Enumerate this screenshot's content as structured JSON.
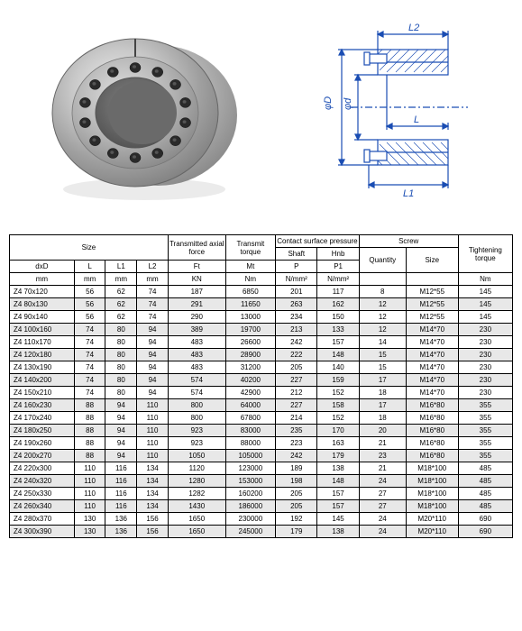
{
  "diagram_labels": {
    "L2": "L2",
    "L1": "L1",
    "L": "L",
    "phiD": "φD",
    "phid": "φd"
  },
  "headers": {
    "size": "Size",
    "transmitted_axial_force": "Transmitted axial force",
    "transmit_torque": "Transmit torque",
    "contact_surface_pressure": "Contact surface pressure",
    "screw": "Screw",
    "tightening_torque": "Tightening torque",
    "shaft": "Shaft",
    "hnb": "Hnb",
    "quantity": "Quantity",
    "screw_size": "Size",
    "dxd": "dxD",
    "L": "L",
    "L1": "L1",
    "L2": "L2",
    "Ft": "Ft",
    "Mt": "Mt",
    "P": "P",
    "P1": "P1",
    "unit_mm": "mm",
    "unit_KN": "KN",
    "unit_Nm": "Nm",
    "unit_Nmm2": "N/mm²"
  },
  "rows": [
    {
      "size": "Z4  70x120",
      "L": "56",
      "L1": "62",
      "L2": "74",
      "Ft": "187",
      "Mt": "6850",
      "P": "201",
      "P1": "117",
      "qty": "8",
      "screw": "M12*55",
      "tt": "145",
      "alt": false
    },
    {
      "size": "Z4  80x130",
      "L": "56",
      "L1": "62",
      "L2": "74",
      "Ft": "291",
      "Mt": "11650",
      "P": "263",
      "P1": "162",
      "qty": "12",
      "screw": "M12*55",
      "tt": "145",
      "alt": true
    },
    {
      "size": "Z4  90x140",
      "L": "56",
      "L1": "62",
      "L2": "74",
      "Ft": "290",
      "Mt": "13000",
      "P": "234",
      "P1": "150",
      "qty": "12",
      "screw": "M12*55",
      "tt": "145",
      "alt": false
    },
    {
      "size": "Z4  100x160",
      "L": "74",
      "L1": "80",
      "L2": "94",
      "Ft": "389",
      "Mt": "19700",
      "P": "213",
      "P1": "133",
      "qty": "12",
      "screw": "M14*70",
      "tt": "230",
      "alt": true
    },
    {
      "size": "Z4  110x170",
      "L": "74",
      "L1": "80",
      "L2": "94",
      "Ft": "483",
      "Mt": "26600",
      "P": "242",
      "P1": "157",
      "qty": "14",
      "screw": "M14*70",
      "tt": "230",
      "alt": false
    },
    {
      "size": "Z4  120x180",
      "L": "74",
      "L1": "80",
      "L2": "94",
      "Ft": "483",
      "Mt": "28900",
      "P": "222",
      "P1": "148",
      "qty": "15",
      "screw": "M14*70",
      "tt": "230",
      "alt": true
    },
    {
      "size": "Z4  130x190",
      "L": "74",
      "L1": "80",
      "L2": "94",
      "Ft": "483",
      "Mt": "31200",
      "P": "205",
      "P1": "140",
      "qty": "15",
      "screw": "M14*70",
      "tt": "230",
      "alt": false
    },
    {
      "size": "Z4  140x200",
      "L": "74",
      "L1": "80",
      "L2": "94",
      "Ft": "574",
      "Mt": "40200",
      "P": "227",
      "P1": "159",
      "qty": "17",
      "screw": "M14*70",
      "tt": "230",
      "alt": true
    },
    {
      "size": "Z4  150x210",
      "L": "74",
      "L1": "80",
      "L2": "94",
      "Ft": "574",
      "Mt": "42900",
      "P": "212",
      "P1": "152",
      "qty": "18",
      "screw": "M14*70",
      "tt": "230",
      "alt": false
    },
    {
      "size": "Z4  160x230",
      "L": "88",
      "L1": "94",
      "L2": "110",
      "Ft": "800",
      "Mt": "64000",
      "P": "227",
      "P1": "158",
      "qty": "17",
      "screw": "M16*80",
      "tt": "355",
      "alt": true
    },
    {
      "size": "Z4  170x240",
      "L": "88",
      "L1": "94",
      "L2": "110",
      "Ft": "800",
      "Mt": "67800",
      "P": "214",
      "P1": "152",
      "qty": "18",
      "screw": "M16*80",
      "tt": "355",
      "alt": false
    },
    {
      "size": "Z4  180x250",
      "L": "88",
      "L1": "94",
      "L2": "110",
      "Ft": "923",
      "Mt": "83000",
      "P": "235",
      "P1": "170",
      "qty": "20",
      "screw": "M16*80",
      "tt": "355",
      "alt": true
    },
    {
      "size": "Z4  190x260",
      "L": "88",
      "L1": "94",
      "L2": "110",
      "Ft": "923",
      "Mt": "88000",
      "P": "223",
      "P1": "163",
      "qty": "21",
      "screw": "M16*80",
      "tt": "355",
      "alt": false
    },
    {
      "size": "Z4  200x270",
      "L": "88",
      "L1": "94",
      "L2": "110",
      "Ft": "1050",
      "Mt": "105000",
      "P": "242",
      "P1": "179",
      "qty": "23",
      "screw": "M16*80",
      "tt": "355",
      "alt": true
    },
    {
      "size": "Z4  220x300",
      "L": "110",
      "L1": "116",
      "L2": "134",
      "Ft": "1120",
      "Mt": "123000",
      "P": "189",
      "P1": "138",
      "qty": "21",
      "screw": "M18*100",
      "tt": "485",
      "alt": false
    },
    {
      "size": "Z4  240x320",
      "L": "110",
      "L1": "116",
      "L2": "134",
      "Ft": "1280",
      "Mt": "153000",
      "P": "198",
      "P1": "148",
      "qty": "24",
      "screw": "M18*100",
      "tt": "485",
      "alt": true
    },
    {
      "size": "Z4  250x330",
      "L": "110",
      "L1": "116",
      "L2": "134",
      "Ft": "1282",
      "Mt": "160200",
      "P": "205",
      "P1": "157",
      "qty": "27",
      "screw": "M18*100",
      "tt": "485",
      "alt": false
    },
    {
      "size": "Z4  260x340",
      "L": "110",
      "L1": "116",
      "L2": "134",
      "Ft": "1430",
      "Mt": "186000",
      "P": "205",
      "P1": "157",
      "qty": "27",
      "screw": "M18*100",
      "tt": "485",
      "alt": true
    },
    {
      "size": "Z4  280x370",
      "L": "130",
      "L1": "136",
      "L2": "156",
      "Ft": "1650",
      "Mt": "230000",
      "P": "192",
      "P1": "145",
      "qty": "24",
      "screw": "M20*110",
      "tt": "690",
      "alt": false
    },
    {
      "size": "Z4  300x390",
      "L": "130",
      "L1": "136",
      "L2": "156",
      "Ft": "1650",
      "Mt": "245000",
      "P": "179",
      "P1": "138",
      "qty": "24",
      "screw": "M20*110",
      "tt": "690",
      "alt": true
    }
  ],
  "colors": {
    "diagram_line": "#1a4db3",
    "metal_light": "#d0d0d0",
    "metal_mid": "#a8a8a8",
    "metal_dark": "#707070",
    "bolt": "#2a2a2a"
  }
}
